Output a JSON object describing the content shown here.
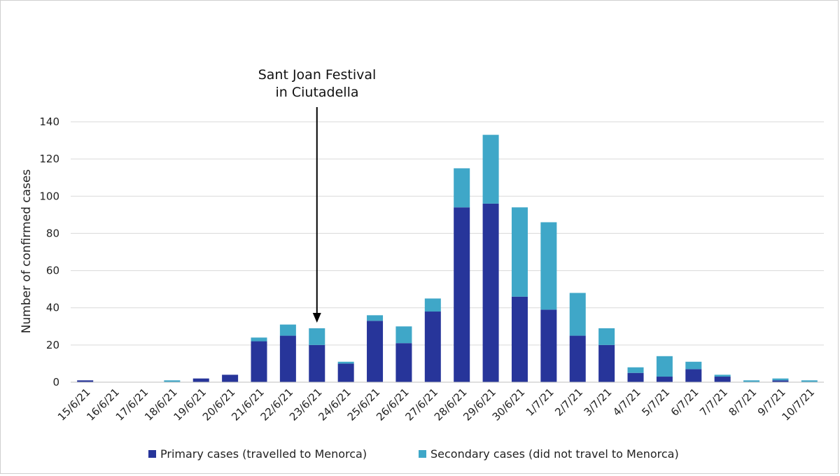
{
  "chart_data": {
    "type": "bar",
    "stacked": true,
    "title": "",
    "xlabel": "",
    "ylabel": "Number of confirmed cases",
    "ylim": [
      0,
      140
    ],
    "yticks": [
      0,
      20,
      40,
      60,
      80,
      100,
      120,
      140
    ],
    "grid": true,
    "legend_position": "bottom",
    "categories": [
      "15/6/21",
      "16/6/21",
      "17/6/21",
      "18/6/21",
      "19/6/21",
      "20/6/21",
      "21/6/21",
      "22/6/21",
      "23/6/21",
      "24/6/21",
      "25/6/21",
      "26/6/21",
      "27/6/21",
      "28/6/21",
      "29/6/21",
      "30/6/21",
      "1/7/21",
      "2/7/21",
      "3/7/21",
      "4/7/21",
      "5/7/21",
      "6/7/21",
      "7/7/21",
      "8/7/21",
      "9/7/21",
      "10/7/21"
    ],
    "series": [
      {
        "name": "Primary cases (travelled to Menorca)",
        "color": "#27359a",
        "values": [
          1,
          0,
          0,
          0,
          2,
          4,
          22,
          25,
          20,
          10,
          33,
          21,
          38,
          94,
          96,
          46,
          39,
          25,
          20,
          5,
          3,
          7,
          3,
          0,
          1,
          0
        ]
      },
      {
        "name": "Secondary cases (did not travel to Menorca)",
        "color": "#3fa7c8",
        "values": [
          0,
          0,
          0,
          1,
          0,
          0,
          2,
          6,
          9,
          1,
          3,
          9,
          7,
          21,
          37,
          48,
          47,
          23,
          9,
          3,
          11,
          4,
          1,
          1,
          1,
          1
        ]
      }
    ],
    "annotation": {
      "line1": "Sant Joan Festival",
      "line2": "in Ciutadella",
      "category": "23/6/21"
    }
  }
}
